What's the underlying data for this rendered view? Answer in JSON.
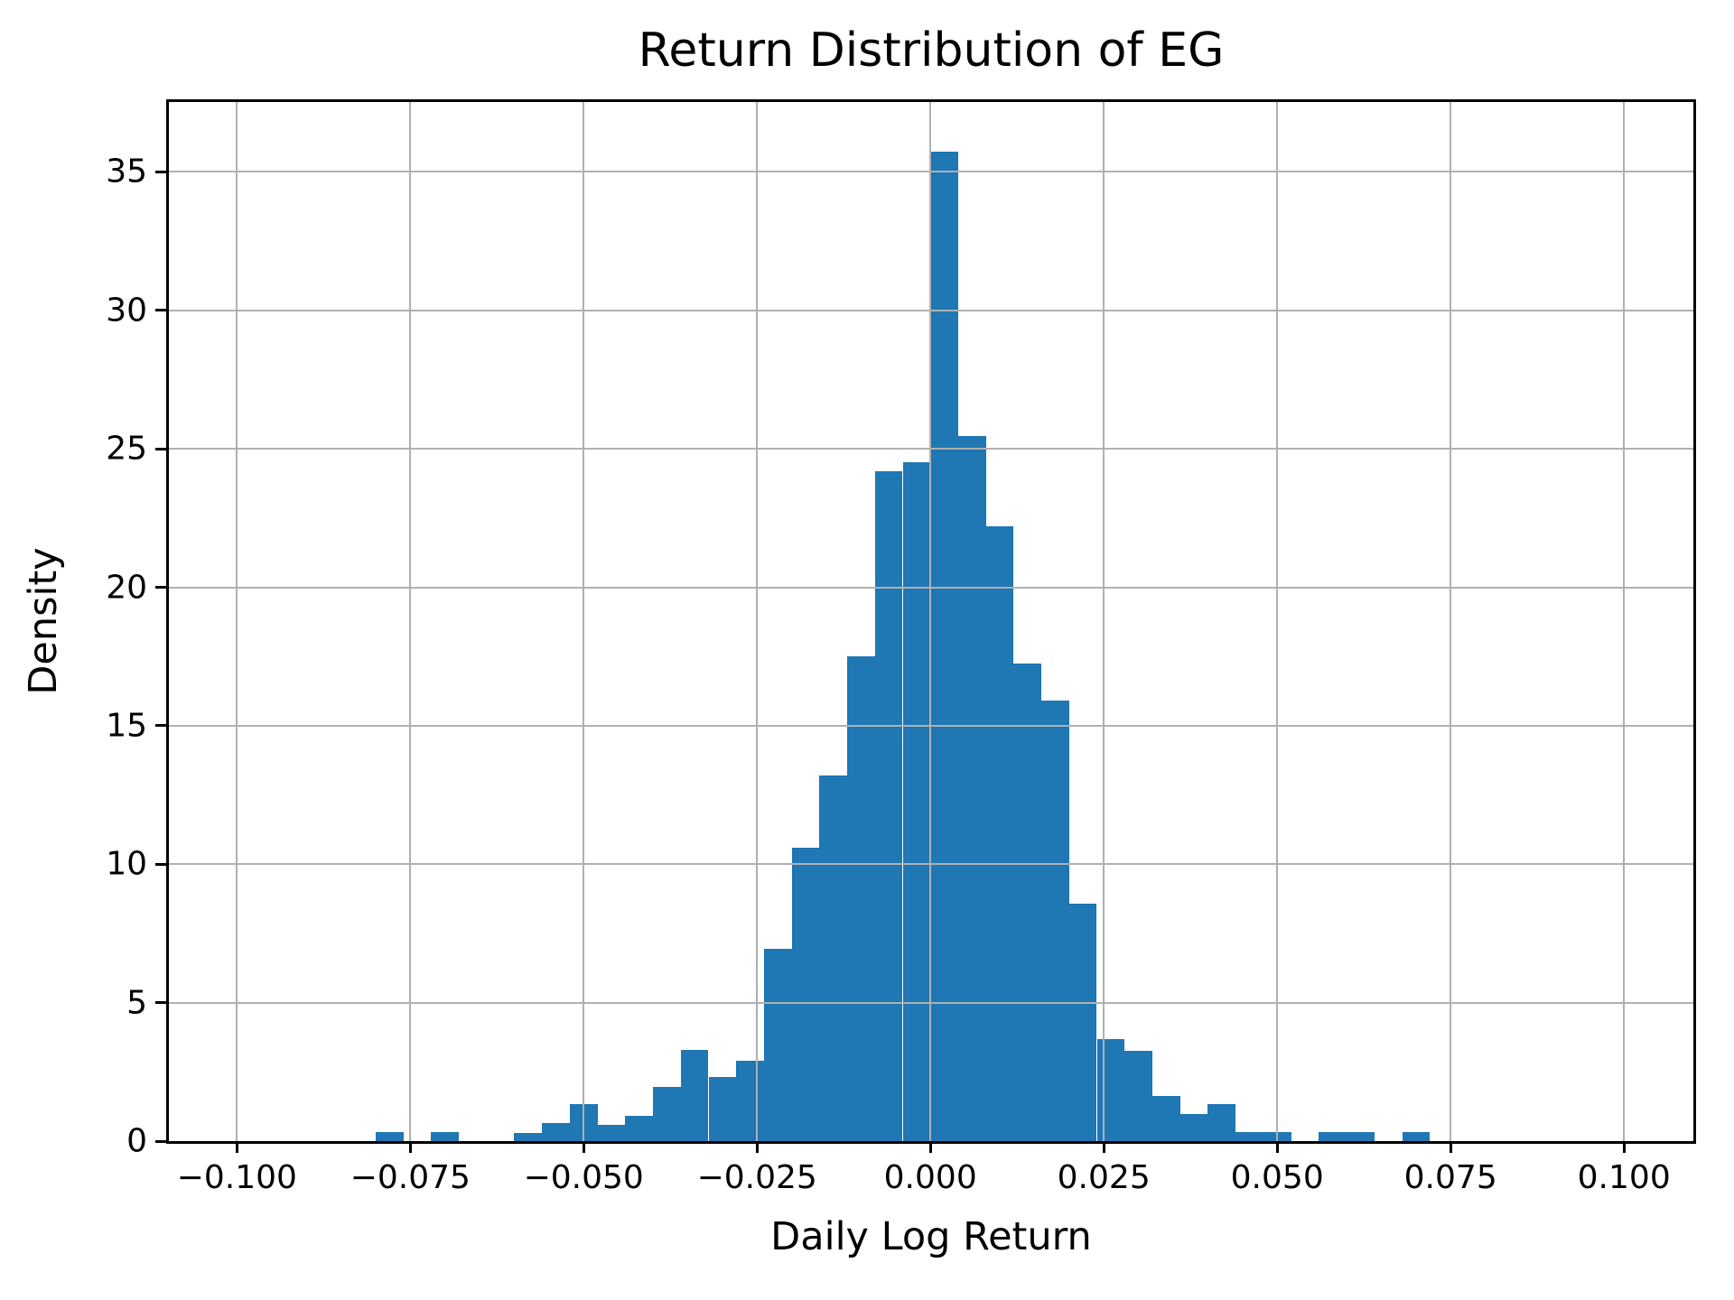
{
  "chart_data": {
    "type": "bar",
    "subtype": "histogram",
    "title": "Return Distribution of EG",
    "xlabel": "Daily Log Return",
    "ylabel": "Density",
    "xlim": [
      -0.1098,
      0.11
    ],
    "ylim": [
      0,
      37.52
    ],
    "grid": true,
    "legend": false,
    "bar_color": "#1f77b4",
    "grid_color": "#b0b0b0",
    "spine_color": "#000000",
    "x_ticks": [
      {
        "value": -0.1,
        "label": "−0.100"
      },
      {
        "value": -0.075,
        "label": "−0.075"
      },
      {
        "value": -0.05,
        "label": "−0.050"
      },
      {
        "value": -0.025,
        "label": "−0.025"
      },
      {
        "value": 0.0,
        "label": "0.000"
      },
      {
        "value": 0.025,
        "label": "0.025"
      },
      {
        "value": 0.05,
        "label": "0.050"
      },
      {
        "value": 0.075,
        "label": "0.075"
      },
      {
        "value": 0.1,
        "label": "0.100"
      }
    ],
    "y_ticks": [
      {
        "value": 0,
        "label": "0"
      },
      {
        "value": 5,
        "label": "5"
      },
      {
        "value": 10,
        "label": "10"
      },
      {
        "value": 15,
        "label": "15"
      },
      {
        "value": 20,
        "label": "20"
      },
      {
        "value": 25,
        "label": "25"
      },
      {
        "value": 30,
        "label": "30"
      },
      {
        "value": 35,
        "label": "35"
      }
    ],
    "histogram": {
      "bin_start": -0.08,
      "bin_width": 0.004,
      "densities": [
        0.33,
        0,
        0.33,
        0,
        0,
        0.3,
        0.65,
        1.35,
        0.6,
        0.91,
        1.95,
        3.3,
        2.32,
        2.9,
        6.94,
        10.59,
        13.2,
        17.5,
        24.2,
        24.5,
        35.73,
        25.45,
        22.2,
        17.25,
        15.9,
        8.57,
        3.67,
        3.26,
        1.63,
        0.98,
        1.33,
        0.33,
        0.33,
        0,
        0.33,
        0.33,
        0,
        0.33
      ]
    }
  }
}
